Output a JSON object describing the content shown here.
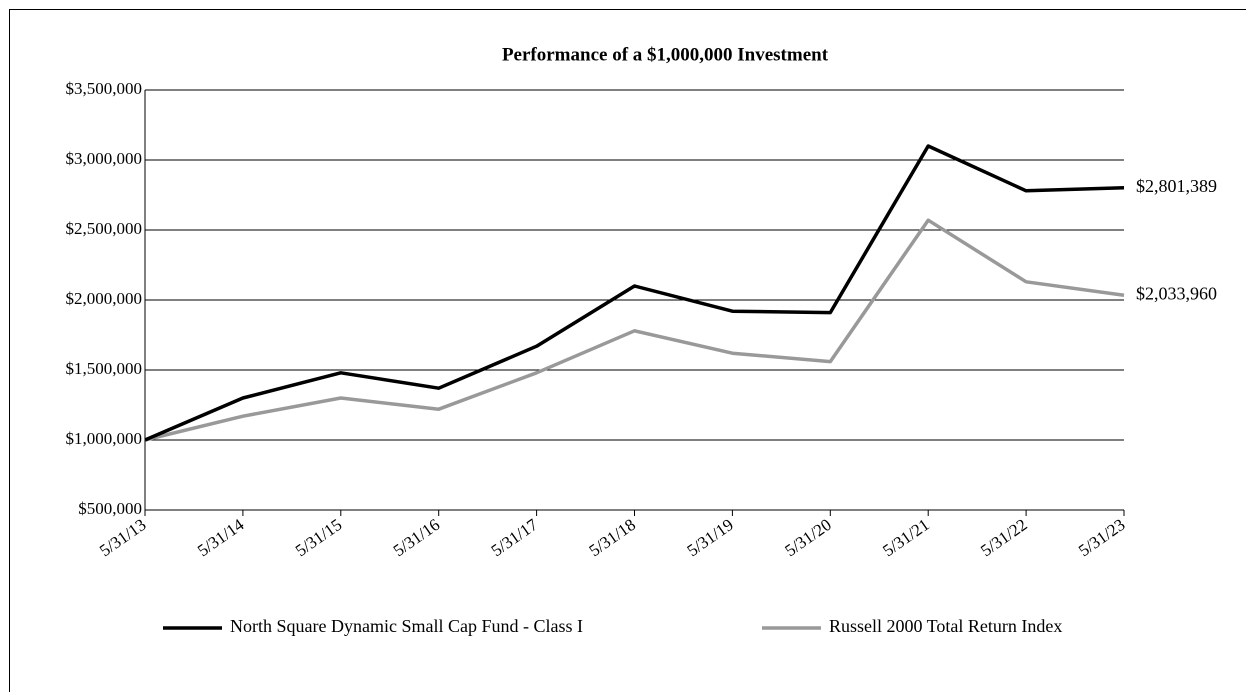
{
  "chart_data": {
    "type": "line",
    "title": "Performance of a $1,000,000 Investment",
    "categories": [
      "5/31/13",
      "5/31/14",
      "5/31/15",
      "5/31/16",
      "5/31/17",
      "5/31/18",
      "5/31/19",
      "5/31/20",
      "5/31/21",
      "5/31/22",
      "5/31/23"
    ],
    "series": [
      {
        "name": "North Square Dynamic Small Cap Fund - Class I",
        "color": "#000000",
        "values": [
          1000000,
          1300000,
          1480000,
          1370000,
          1670000,
          2100000,
          1920000,
          1910000,
          3100000,
          2780000,
          2801389
        ],
        "value_labels": [
          null,
          null,
          null,
          null,
          null,
          null,
          null,
          null,
          null,
          null,
          "$2,801,389"
        ]
      },
      {
        "name": "Russell 2000 Total Return Index",
        "color": "#999999",
        "values": [
          1000000,
          1170000,
          1300000,
          1220000,
          1480000,
          1780000,
          1620000,
          1560000,
          2570000,
          2130000,
          2033960
        ],
        "value_labels": [
          null,
          null,
          null,
          null,
          null,
          null,
          null,
          null,
          null,
          null,
          "$2,033,960"
        ]
      }
    ],
    "ylim": [
      500000,
      3500000
    ],
    "yticks": [
      {
        "value": 500000,
        "label": "$500,000"
      },
      {
        "value": 1000000,
        "label": "$1,000,000"
      },
      {
        "value": 1500000,
        "label": "$1,500,000"
      },
      {
        "value": 2000000,
        "label": "$2,000,000"
      },
      {
        "value": 2500000,
        "label": "$2,500,000"
      },
      {
        "value": 3000000,
        "label": "$3,000,000"
      },
      {
        "value": 3500000,
        "label": "$3,500,000"
      }
    ],
    "grid": true,
    "legend": "bottom"
  }
}
